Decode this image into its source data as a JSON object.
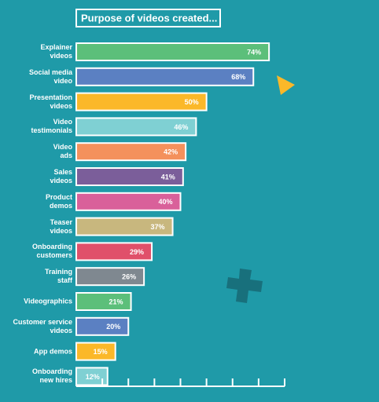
{
  "chart_data": {
    "type": "bar",
    "orientation": "horizontal",
    "title": "Purpose of videos created...",
    "categories": [
      "Explainer\nvideos",
      "Social media\nvideo",
      "Presentation\nvideos",
      "Video\ntestimonials",
      "Video\nads",
      "Sales\nvideos",
      "Product\ndemos",
      "Teaser\nvideos",
      "Onboarding\ncustomers",
      "Training\nstaff",
      "Videographics",
      "Customer service\nvideos",
      "App demos",
      "Onboarding\nnew hires"
    ],
    "values": [
      74,
      68,
      50,
      46,
      42,
      41,
      40,
      37,
      29,
      26,
      21,
      20,
      15,
      12
    ],
    "value_labels": [
      "74%",
      "68%",
      "50%",
      "46%",
      "42%",
      "41%",
      "40%",
      "37%",
      "29%",
      "26%",
      "21%",
      "20%",
      "15%",
      "12%"
    ],
    "colors": [
      "#5cbf7a",
      "#5b80c2",
      "#fbb829",
      "#7fd0d3",
      "#f4915c",
      "#7b5e9a",
      "#d9609a",
      "#c8b77e",
      "#e0506a",
      "#7f8890",
      "#5cbf7a",
      "#5b80c2",
      "#fbb829",
      "#7fd0d3"
    ],
    "xlim": [
      0,
      80
    ],
    "xticks": [
      0,
      10,
      20,
      30,
      40,
      50,
      60,
      70,
      80
    ]
  }
}
